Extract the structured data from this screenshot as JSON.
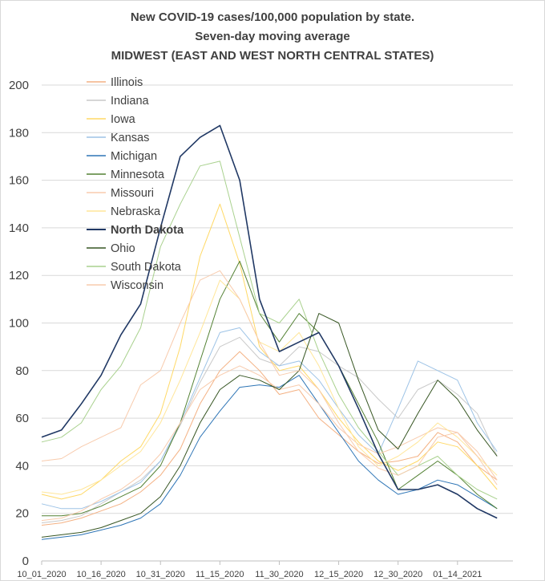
{
  "chart_data": {
    "type": "line",
    "title_lines": [
      "New COVID-19 cases/100,000 population by state.",
      "Seven-day moving average",
      "MIDWEST (EAST AND WEST NORTH CENTRAL STATES)"
    ],
    "xlabel": "",
    "ylabel": "",
    "x": [
      "2020-10-01",
      "2020-10-06",
      "2020-10-11",
      "2020-10-16",
      "2020-10-21",
      "2020-10-26",
      "2020-10-31",
      "2020-11-05",
      "2020-11-10",
      "2020-11-15",
      "2020-11-20",
      "2020-11-25",
      "2020-11-30",
      "2020-12-05",
      "2020-12-10",
      "2020-12-15",
      "2020-12-20",
      "2020-12-25",
      "2020-12-30",
      "2021-01-04",
      "2021-01-09",
      "2021-01-14",
      "2021-01-19",
      "2021-01-24"
    ],
    "x_tick_labels": [
      "10_01_2020",
      "10_16_2020",
      "10_31_2020",
      "11_15_2020",
      "11_30_2020",
      "12_15_2020",
      "12_30_2020",
      "01_14_2021"
    ],
    "x_tick_values": [
      "2020-10-01",
      "2020-10-16",
      "2020-10-31",
      "2020-11-15",
      "2020-11-30",
      "2020-12-15",
      "2020-12-30",
      "2021-01-14"
    ],
    "x_range": [
      "2020-10-01",
      "2021-01-28"
    ],
    "ylim": [
      0,
      200
    ],
    "y_ticks": [
      0,
      20,
      40,
      60,
      80,
      100,
      120,
      140,
      160,
      180,
      200
    ],
    "grid": "horizontal",
    "legend_position": "top-left",
    "series": [
      {
        "name": "Illinois",
        "color": "#F4B183",
        "bold": false,
        "width": 1,
        "values": [
          15,
          16,
          18,
          21,
          24,
          29,
          36,
          47,
          66,
          80,
          88,
          80,
          70,
          72,
          60,
          53,
          46,
          41,
          42,
          44,
          54,
          50,
          40,
          34
        ]
      },
      {
        "name": "Indiana",
        "color": "#C9C9C9",
        "bold": false,
        "width": 1,
        "values": [
          16,
          17,
          19,
          24,
          29,
          34,
          42,
          57,
          75,
          90,
          94,
          85,
          82,
          90,
          88,
          82,
          77,
          68,
          60,
          72,
          76,
          70,
          62,
          44
        ]
      },
      {
        "name": "Iowa",
        "color": "#FFD966",
        "bold": false,
        "width": 1,
        "values": [
          28,
          26,
          28,
          34,
          42,
          48,
          62,
          90,
          128,
          150,
          125,
          90,
          80,
          82,
          72,
          60,
          50,
          42,
          38,
          42,
          50,
          48,
          40,
          30
        ]
      },
      {
        "name": "Kansas",
        "color": "#9DC3E6",
        "bold": false,
        "width": 1,
        "values": [
          24,
          22,
          22,
          25,
          29,
          33,
          42,
          58,
          77,
          96,
          98,
          88,
          82,
          84,
          76,
          64,
          53,
          45,
          64,
          84,
          80,
          76,
          58,
          46
        ]
      },
      {
        "name": "Michigan",
        "color": "#2E75B6",
        "bold": false,
        "width": 1,
        "values": [
          9,
          10,
          11,
          13,
          15,
          18,
          24,
          36,
          52,
          63,
          73,
          74,
          73,
          78,
          66,
          54,
          42,
          34,
          28,
          30,
          34,
          32,
          27,
          22
        ]
      },
      {
        "name": "Minnesota",
        "color": "#548235",
        "bold": false,
        "width": 1,
        "values": [
          19,
          19,
          20,
          23,
          27,
          31,
          40,
          58,
          84,
          110,
          126,
          104,
          92,
          104,
          96,
          82,
          66,
          50,
          30,
          36,
          42,
          36,
          28,
          22
        ]
      },
      {
        "name": "Missouri",
        "color": "#F8CBAD",
        "bold": false,
        "width": 1,
        "values": [
          17,
          18,
          21,
          26,
          30,
          36,
          45,
          58,
          72,
          78,
          82,
          78,
          72,
          74,
          66,
          56,
          49,
          45,
          48,
          52,
          56,
          54,
          46,
          34
        ]
      },
      {
        "name": "Nebraska",
        "color": "#FFE699",
        "bold": false,
        "width": 1,
        "values": [
          29,
          28,
          30,
          34,
          40,
          46,
          58,
          76,
          96,
          118,
          110,
          92,
          88,
          96,
          82,
          64,
          48,
          40,
          44,
          50,
          58,
          52,
          44,
          36
        ]
      },
      {
        "name": "North Dakota",
        "color": "#203864",
        "bold": true,
        "width": 1.6,
        "values": [
          52,
          55,
          66,
          78,
          95,
          108,
          140,
          170,
          178,
          183,
          160,
          110,
          88,
          92,
          96,
          82,
          64,
          45,
          30,
          30,
          32,
          28,
          22,
          18
        ]
      },
      {
        "name": "Ohio",
        "color": "#375623",
        "bold": false,
        "width": 1,
        "values": [
          10,
          11,
          12,
          14,
          17,
          20,
          27,
          40,
          58,
          72,
          78,
          76,
          72,
          80,
          104,
          100,
          76,
          55,
          47,
          62,
          76,
          68,
          55,
          44
        ]
      },
      {
        "name": "South Dakota",
        "color": "#A9D18E",
        "bold": false,
        "width": 1,
        "values": [
          50,
          52,
          58,
          72,
          82,
          98,
          132,
          150,
          166,
          168,
          136,
          104,
          100,
          110,
          88,
          70,
          56,
          46,
          36,
          40,
          44,
          36,
          30,
          26
        ]
      },
      {
        "name": "Wisconsin",
        "color": "#F8CBAD",
        "bold": false,
        "width": 1,
        "values": [
          42,
          43,
          48,
          52,
          56,
          74,
          80,
          100,
          118,
          122,
          110,
          92,
          78,
          80,
          72,
          58,
          46,
          39,
          36,
          40,
          52,
          54,
          44,
          32
        ]
      }
    ]
  }
}
